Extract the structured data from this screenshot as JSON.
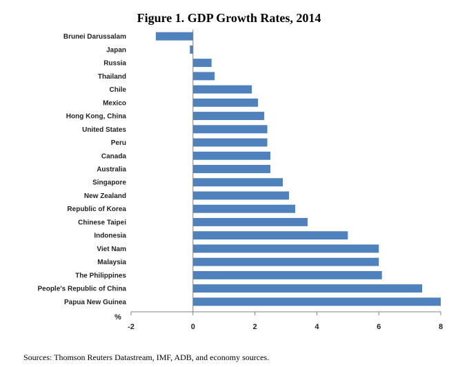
{
  "chart_data": {
    "type": "bar",
    "orientation": "horizontal",
    "title": "Figure 1. GDP Growth Rates, 2014",
    "xlabel": "%",
    "source": "Sources: Thomson Reuters Datastream, IMF, ADB, and economy sources.",
    "xlim": [
      -2,
      8
    ],
    "xticks": [
      -2,
      0,
      2,
      4,
      6,
      8
    ],
    "bar_color": "#4f81bd",
    "grid": false,
    "categories": [
      "Brunei Darussalam",
      "Japan",
      "Russia",
      "Thailand",
      "Chile",
      "Mexico",
      "Hong Kong, China",
      "United States",
      "Peru",
      "Canada",
      "Australia",
      "Singapore",
      "New Zealand",
      "Republic of Korea",
      "Chinese Taipei",
      "Indonesia",
      "Viet Nam",
      "Malaysia",
      "The Philippines",
      "People's Republic of China",
      "Papua New Guinea"
    ],
    "values": [
      -1.2,
      -0.1,
      0.6,
      0.7,
      1.9,
      2.1,
      2.3,
      2.4,
      2.4,
      2.5,
      2.5,
      2.9,
      3.1,
      3.3,
      3.7,
      5.0,
      6.0,
      6.0,
      6.1,
      7.4,
      8.0
    ]
  }
}
